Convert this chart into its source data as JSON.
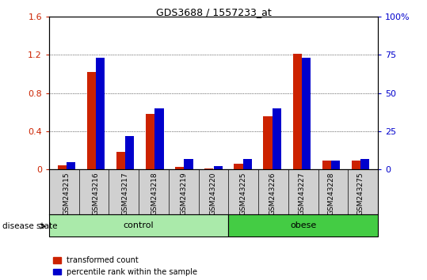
{
  "title": "GDS3688 / 1557233_at",
  "samples": [
    "GSM243215",
    "GSM243216",
    "GSM243217",
    "GSM243218",
    "GSM243219",
    "GSM243220",
    "GSM243225",
    "GSM243226",
    "GSM243227",
    "GSM243228",
    "GSM243275"
  ],
  "red_values": [
    0.04,
    1.02,
    0.18,
    0.58,
    0.03,
    0.01,
    0.06,
    0.56,
    1.21,
    0.09,
    0.09
  ],
  "blue_values_pct": [
    5,
    73,
    22,
    40,
    7,
    2,
    7,
    40,
    73,
    6,
    7
  ],
  "ylim_left": [
    0,
    1.6
  ],
  "ylim_right": [
    0,
    100
  ],
  "yticks_left": [
    0,
    0.4,
    0.8,
    1.2,
    1.6
  ],
  "yticks_right": [
    0,
    25,
    50,
    75,
    100
  ],
  "ytick_labels_left": [
    "0",
    "0.4",
    "0.8",
    "1.2",
    "1.6"
  ],
  "ytick_labels_right": [
    "0",
    "25",
    "50",
    "75",
    "100%"
  ],
  "control_indices": [
    0,
    1,
    2,
    3,
    4,
    5
  ],
  "obese_indices": [
    6,
    7,
    8,
    9,
    10
  ],
  "disease_state_label": "disease state",
  "legend_red": "transformed count",
  "legend_blue": "percentile rank within the sample",
  "bar_width": 0.3,
  "red_color": "#CC2200",
  "blue_color": "#0000CC",
  "ctrl_color": "#AAEAAA",
  "obese_color": "#44CC44",
  "label_bg": "#D0D0D0",
  "plot_bg": "#FFFFFF"
}
